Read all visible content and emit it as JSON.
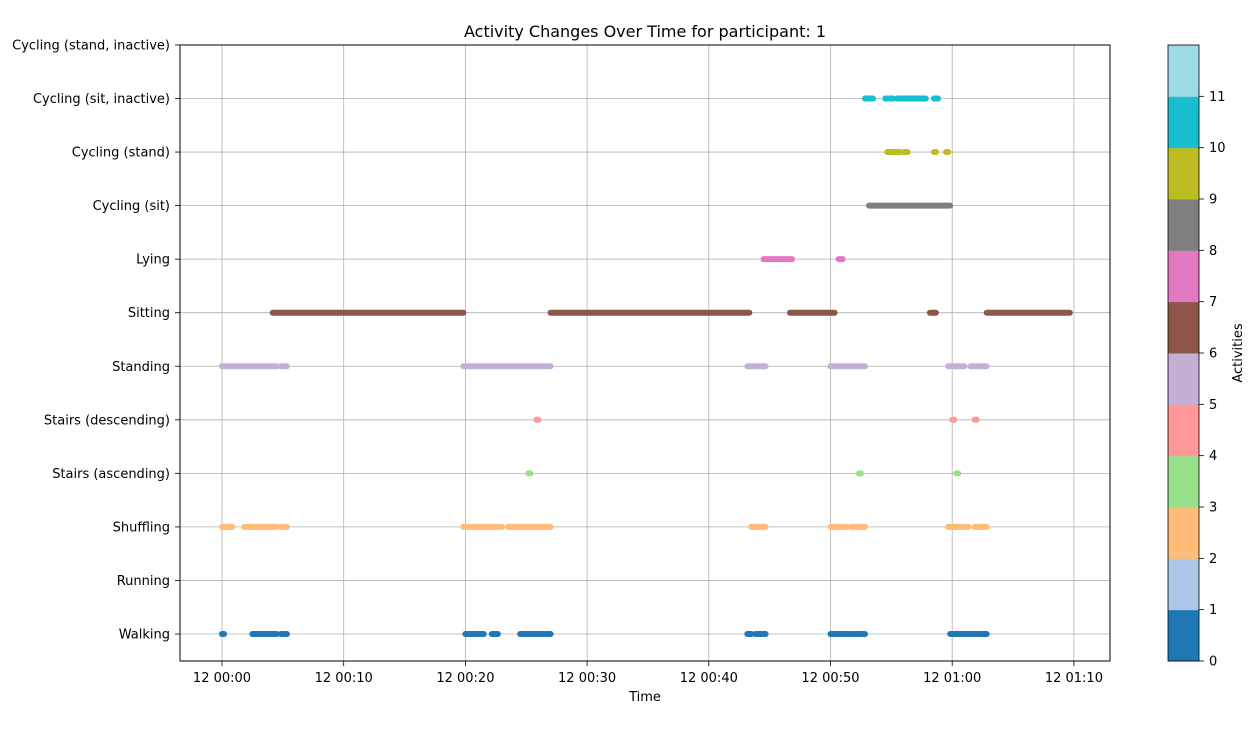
{
  "chart_data": {
    "type": "scatter",
    "title": "Activity Changes Over Time for participant: 1",
    "xlabel": "Time",
    "ylabel": "",
    "x_unit": "time of day (hh:mm) on day 12",
    "x_range": [
      "00:00",
      "01:10"
    ],
    "x_ticks": [
      "12 00:00",
      "12 00:10",
      "12 00:20",
      "12 00:30",
      "12 00:40",
      "12 00:50",
      "12 01:00",
      "12 01:10"
    ],
    "categories": [
      "Walking",
      "Running",
      "Shuffling",
      "Stairs (ascending)",
      "Stairs (descending)",
      "Standing",
      "Sitting",
      "Lying",
      "Cycling (sit)",
      "Cycling (stand)",
      "Cycling (sit, inactive)",
      "Cycling (stand, inactive)"
    ],
    "grid": true,
    "colorbar": {
      "label": "Activities",
      "ticks": [
        "0",
        "1",
        "2",
        "3",
        "4",
        "5",
        "6",
        "7",
        "8",
        "9",
        "10",
        "11"
      ],
      "colors": [
        "#1f77b4",
        "#aec7e8",
        "#ffbb78",
        "#98df8a",
        "#ff9896",
        "#c5b0d5",
        "#8c564b",
        "#e377c2",
        "#7f7f7f",
        "#bcbd22",
        "#17becf",
        "#9edae5"
      ]
    },
    "series": [
      {
        "category": "Walking",
        "color": "#1f77b4",
        "segments": [
          [
            "00:00:00",
            "00:00:10"
          ],
          [
            "00:02:30",
            "00:04:30"
          ],
          [
            "00:04:50",
            "00:05:20"
          ],
          [
            "00:20:00",
            "00:21:30"
          ],
          [
            "00:22:10",
            "00:22:40"
          ],
          [
            "00:24:30",
            "00:26:30"
          ],
          [
            "00:26:40",
            "00:27:00"
          ],
          [
            "00:43:10",
            "00:43:30"
          ],
          [
            "00:43:50",
            "00:44:40"
          ],
          [
            "00:50:00",
            "00:51:30"
          ],
          [
            "00:51:40",
            "00:52:50"
          ],
          [
            "00:59:50",
            "01:02:50"
          ]
        ]
      },
      {
        "category": "Shuffling",
        "color": "#ffbb78",
        "segments": [
          [
            "00:00:00",
            "00:00:50"
          ],
          [
            "00:01:50",
            "00:04:30"
          ],
          [
            "00:04:50",
            "00:05:20"
          ],
          [
            "00:19:50",
            "00:23:00"
          ],
          [
            "00:23:30",
            "00:27:00"
          ],
          [
            "00:43:30",
            "00:44:40"
          ],
          [
            "00:50:00",
            "00:51:20"
          ],
          [
            "00:51:40",
            "00:52:50"
          ],
          [
            "00:59:40",
            "01:00:40"
          ],
          [
            "01:00:50",
            "01:01:20"
          ],
          [
            "01:01:50",
            "01:02:50"
          ]
        ]
      },
      {
        "category": "Stairs (ascending)",
        "color": "#98df8a",
        "segments": [
          [
            "00:25:10",
            "00:25:20"
          ],
          [
            "00:52:20",
            "00:52:30"
          ],
          [
            "01:00:20",
            "01:00:30"
          ]
        ]
      },
      {
        "category": "Stairs (descending)",
        "color": "#ff9896",
        "segments": [
          [
            "00:25:50",
            "00:26:00"
          ],
          [
            "01:00:00",
            "01:00:10"
          ],
          [
            "01:01:50",
            "01:02:00"
          ]
        ]
      },
      {
        "category": "Standing",
        "color": "#c5b0d5",
        "segments": [
          [
            "00:00:00",
            "00:04:30"
          ],
          [
            "00:04:50",
            "00:05:20"
          ],
          [
            "00:19:50",
            "00:27:00"
          ],
          [
            "00:43:10",
            "00:44:40"
          ],
          [
            "00:50:00",
            "00:52:50"
          ],
          [
            "00:59:40",
            "01:00:40"
          ],
          [
            "01:00:50",
            "01:01:00"
          ],
          [
            "01:01:30",
            "01:01:40"
          ],
          [
            "01:01:50",
            "01:02:50"
          ]
        ]
      },
      {
        "category": "Sitting",
        "color": "#8c564b",
        "segments": [
          [
            "00:04:10",
            "00:19:50"
          ],
          [
            "00:27:00",
            "00:43:20"
          ],
          [
            "00:46:40",
            "00:50:20"
          ],
          [
            "00:58:10",
            "00:58:40"
          ],
          [
            "01:02:50",
            "01:09:40"
          ]
        ]
      },
      {
        "category": "Lying",
        "color": "#e377c2",
        "segments": [
          [
            "00:44:30",
            "00:46:50"
          ],
          [
            "00:50:40",
            "00:51:00"
          ]
        ]
      },
      {
        "category": "Cycling (sit)",
        "color": "#7f7f7f",
        "segments": [
          [
            "00:53:10",
            "00:59:50"
          ]
        ]
      },
      {
        "category": "Cycling (stand)",
        "color": "#bcbd22",
        "segments": [
          [
            "00:54:40",
            "00:55:40"
          ],
          [
            "00:56:00",
            "00:56:20"
          ],
          [
            "00:58:30",
            "00:58:40"
          ],
          [
            "00:59:30",
            "00:59:40"
          ]
        ]
      },
      {
        "category": "Cycling (sit, inactive)",
        "color": "#17becf",
        "segments": [
          [
            "00:52:50",
            "00:53:30"
          ],
          [
            "00:54:30",
            "00:55:10"
          ],
          [
            "00:55:30",
            "00:57:50"
          ],
          [
            "00:58:30",
            "00:58:50"
          ]
        ]
      },
      {
        "category": "Cycling (stand, inactive)",
        "color": "#9edae5",
        "segments": []
      }
    ]
  }
}
